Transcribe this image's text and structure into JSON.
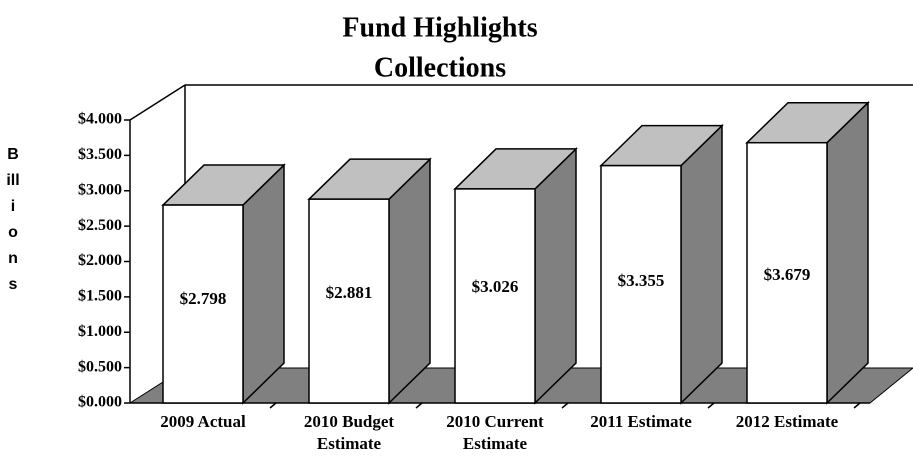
{
  "chart_data": {
    "type": "bar3d",
    "title": "Fund Highlights",
    "subtitle": "Collections",
    "ylabel": "Billions",
    "categories": [
      "2009 Actual",
      "2010 Budget Estimate",
      "2010 Current Estimate",
      "2011 Estimate",
      "2012 Estimate"
    ],
    "values": [
      2.798,
      2.881,
      3.026,
      3.355,
      3.679
    ],
    "value_labels": [
      "$2.798",
      "$2.881",
      "$3.026",
      "$3.355",
      "$3.679"
    ],
    "ylim": [
      0,
      4
    ],
    "yticks": [
      {
        "value": 0,
        "label": "$0.000"
      },
      {
        "value": 0.5,
        "label": "$0.500"
      },
      {
        "value": 1,
        "label": "$1.000"
      },
      {
        "value": 1.5,
        "label": "$1.500"
      },
      {
        "value": 2,
        "label": "$2.000"
      },
      {
        "value": 2.5,
        "label": "$2.500"
      },
      {
        "value": 3,
        "label": "$3.000"
      },
      {
        "value": 3.5,
        "label": "$3.500"
      },
      {
        "value": 4,
        "label": "$4.000"
      }
    ],
    "colors": {
      "front": "#ffffff",
      "top": "#c0c0c0",
      "side": "#808080",
      "floor": "#808080"
    }
  }
}
